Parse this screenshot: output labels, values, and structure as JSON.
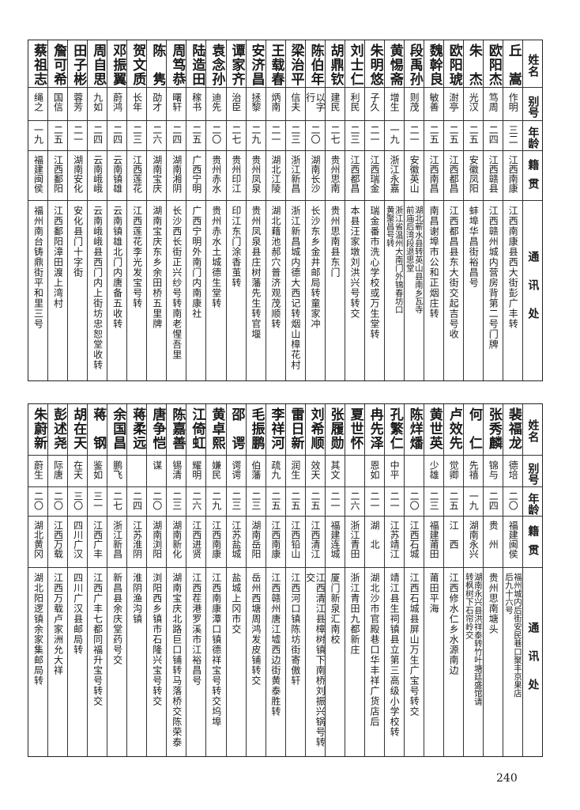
{
  "headers": {
    "name": "姓名",
    "alias": "别号",
    "age": "年龄",
    "native": "籍贯",
    "address": "通讯处"
  },
  "tables": [
    {
      "rows": [
        {
          "name": "丘　嵩",
          "alias": "作明",
          "age": "三二",
          "native": "江西南康",
          "address": "江西南康县西大街彭广丰转"
        },
        {
          "name": "欧阳杰",
          "alias": "笃周",
          "age": "二四",
          "native": "江西赣县",
          "address": "江西赣州城内营房背第二号门牌"
        },
        {
          "name": "朱　杰",
          "alias": "光汉",
          "age": "二五",
          "native": "安徽凤阳",
          "address": "蚌埠华昌街裕昌号"
        },
        {
          "name": "欧阳琥",
          "alias": "澍亭",
          "age": "二五",
          "native": "江西都昌",
          "address": "江西都昌县东大街交起吉号收"
        },
        {
          "name": "魏幹良",
          "alias": "敏善",
          "age": "二五",
          "native": "江西南昌",
          "address": "南昌谢埠市公和正烟庄转"
        },
        {
          "name": "段禹孙",
          "alias": "则茂",
          "age": "二一",
          "native": "安徽英山",
          "address": "湖北蕲水县转英山县南乡瓦寺\n前庙后湾段退思堂"
        },
        {
          "name": "黄惕斋",
          "alias": "增生",
          "age": "一九",
          "native": "浙江永嘉",
          "address": "浙江省温州大南门外锦春坊口\n黄聚昌号转"
        },
        {
          "name": "朱明悠",
          "alias": "子久",
          "age": "二一",
          "native": "江西瑞金",
          "address": "瑞金番市洗心学校或万生堂转"
        },
        {
          "name": "刘士仁",
          "alias": "利民",
          "age": "二三",
          "native": "江西都昌",
          "address": "本县汪家墩刘洪兴号转交"
        },
        {
          "name": "胡鼎钦",
          "alias": "建民",
          "age": "二七",
          "native": "贵州思南",
          "address": "贵州思南县东门"
        },
        {
          "name": "陈伯年",
          "alias": "以字行",
          "age": "二〇",
          "native": "湖南长沙",
          "address": "长沙东乡金井邮局转童家冲"
        },
        {
          "name": "梁治平",
          "alias": "信夫",
          "age": "二三",
          "native": "浙江新昌",
          "address": "浙江新昌城内德大西记转烟山樟花村"
        },
        {
          "name": "王载春",
          "alias": "炳南",
          "age": "二一",
          "native": "湖北江陵",
          "address": "湖北藉池郝穴普济观茂顺转"
        },
        {
          "name": "安济昌",
          "alias": "拯黎",
          "age": "二九",
          "native": "贵州凤泉",
          "address": "贵州凤泉县庄树藩先生转官堰"
        },
        {
          "name": "谭家齐",
          "alias": "治臣",
          "age": "二七",
          "native": "贵州印江",
          "address": "印江东门涂香茧转"
        },
        {
          "name": "袁念孙",
          "alias": "迪先",
          "age": "二〇",
          "native": "贵州赤水",
          "address": "贵州赤水土城德生堂转"
        },
        {
          "name": "陆造田",
          "alias": "稼书",
          "age": "二五",
          "native": "广西宁明",
          "address": "广西宁明外南门内南康社"
        },
        {
          "name": "周笃恭",
          "alias": "曙轩",
          "age": "二四",
          "native": "湖南湘阴",
          "address": "长沙西长街正兴纱号转南老惺吾里"
        },
        {
          "name": "陈　隽",
          "alias": "劭才",
          "age": "二六",
          "native": "湖南宝庆",
          "address": "湖南宝庆东乡余田桥五里牌"
        },
        {
          "name": "贺文质",
          "alias": "长年",
          "age": "二三",
          "native": "江西莲花",
          "address": "江西莲花李光发宝号转"
        },
        {
          "name": "邓振翼",
          "alias": "蔚鸿",
          "age": "二四",
          "native": "云南镇雄",
          "address": "云南镇雄北门内唐备五收转"
        },
        {
          "name": "周自思",
          "alias": "九如",
          "age": "二四",
          "native": "云南峨峨",
          "address": "云南峨峨县西门内上街坊忠恕堂收转"
        },
        {
          "name": "田子彬",
          "alias": "蓉芳",
          "age": "二一",
          "native": "湖南安化",
          "address": "安化县门十字街"
        },
        {
          "name": "詹可希",
          "alias": "国信",
          "age": "二五",
          "native": "江西鄱阳",
          "address": "江西鄱阳漳田渡上湾村"
        },
        {
          "name": "蔡祖志",
          "alias": "绳之",
          "age": "一九",
          "native": "福建闽侯",
          "address": "福州南台铸鼎街平和里三号"
        }
      ]
    },
    {
      "rows": [
        {
          "name": "裴福龙",
          "alias": "德培",
          "age": "二〇",
          "native": "福建闽侯",
          "address": "福州城内后街安民巷口聚丰京果店\n后九十六号"
        },
        {
          "name": "张秀麟",
          "alias": "锦与",
          "age": "二四",
          "native": "贵　州",
          "address": "贵州思南塘头"
        },
        {
          "name": "何　仁",
          "alias": "先禧",
          "age": "一九",
          "native": "湖南永兴",
          "address": "湖南永兴县洪祥泰转竹叶塘廷盛馆请\n转枫树下石帘岭交"
        },
        {
          "name": "卢效先",
          "alias": "觉卿",
          "age": "二五",
          "native": "江　西",
          "address": "江西修水仁乡水源南边"
        },
        {
          "name": "黄世英",
          "alias": "少雄",
          "age": "二三",
          "native": "福建莆田",
          "address": "莆田平海"
        },
        {
          "name": "陈烊燔",
          "alias": "",
          "age": "二〇",
          "native": "江西石城",
          "address": "江西石城县屏山万生广宝号转交"
        },
        {
          "name": "孔繁仁",
          "alias": "中平",
          "age": "二一",
          "native": "江苏靖江",
          "address": "靖江县生祠镇县立第三高级小学校转"
        },
        {
          "name": "冉先泽",
          "alias": "恩如",
          "age": "二一",
          "native": "湖　北",
          "address": "湖北沙市官殿巷口华丰祥广货店后"
        },
        {
          "name": "夏世怀",
          "alias": "",
          "age": "二六",
          "native": "浙江青田",
          "address": "浙江青田九都新庄"
        },
        {
          "name": "张履勋",
          "alias": "其文",
          "age": "二一",
          "native": "福建连城",
          "address": "厦门新泉汇南校"
        },
        {
          "name": "刘希顺",
          "alias": "效天",
          "age": "二五",
          "native": "江西清江",
          "address": "江西清江县樟树镇下南桥刘振兴锅号转交"
        },
        {
          "name": "雷日新",
          "alias": "润生",
          "age": "二五",
          "native": "江西铅山",
          "address": "江西河口镇陈坊街寄傲轩"
        },
        {
          "name": "李祥河",
          "alias": "疏九",
          "age": "二五",
          "native": "江西南康",
          "address": "江西赣州唐江墟西边街黄泰胜转"
        },
        {
          "name": "毛振鹏",
          "alias": "伯藩",
          "age": "二三",
          "native": "湖南岳阳",
          "address": "岳州西塘周鸿发皮铺转交"
        },
        {
          "name": "邵　谔",
          "alias": "谔谔",
          "age": "二三",
          "native": "江苏盐城",
          "address": "盐城上冈市交"
        },
        {
          "name": "黄卓熙",
          "alias": "嫌民",
          "age": "二九",
          "native": "江西南康",
          "address": "江西南康潭口镇德祥宝号转交坞埠"
        },
        {
          "name": "江倚虹",
          "alias": "耀明",
          "age": "二六",
          "native": "江西进贤",
          "address": "江西茬港罗溪市江裕昌号"
        },
        {
          "name": "陈嘉善",
          "alias": "锡清",
          "age": "二三",
          "native": "湖南新化",
          "address": "湖南宝庆北路巨口铺转马落桥交陈荣泰"
        },
        {
          "name": "唐争恺",
          "alias": "谋",
          "age": "二〇",
          "native": "湖南浏阳",
          "address": "浏阳西乡镇市石隆兴宝号转交"
        },
        {
          "name": "蒋柔远",
          "alias": "",
          "age": "二四",
          "native": "江苏淮阴",
          "address": "淮阴渔沟镇"
        },
        {
          "name": "余国昌",
          "alias": "鹏飞",
          "age": "二七",
          "native": "浙江新昌",
          "address": "新昌县余庆堂药号交"
        },
        {
          "name": "蒋　钢",
          "alias": "鉴如",
          "age": "三一",
          "native": "江西广丰",
          "address": "江西广丰七都同福升宝号转交"
        },
        {
          "name": "胡在天",
          "alias": "在天",
          "age": "三〇",
          "native": "四川广汉",
          "address": "四川广汉县邮局转"
        },
        {
          "name": "彭述尧",
          "alias": "际唐",
          "age": "二〇",
          "native": "江西万载",
          "address": "江西万载卢家洲允大祥"
        },
        {
          "name": "朱蔚新",
          "alias": "蔚生",
          "age": "二〇",
          "native": "湖北黄冈",
          "address": "湖北阳逻镇余家集邮局转"
        }
      ]
    }
  ],
  "page_number": "240"
}
